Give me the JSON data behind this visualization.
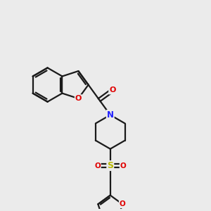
{
  "bg_color": "#ebebeb",
  "bond_color": "#1a1a1a",
  "atom_colors": {
    "O": "#e00000",
    "N": "#2020ff",
    "S": "#b8b800",
    "C": "#1a1a1a"
  },
  "bond_width": 1.6,
  "figsize": [
    3.0,
    3.0
  ],
  "dpi": 100
}
